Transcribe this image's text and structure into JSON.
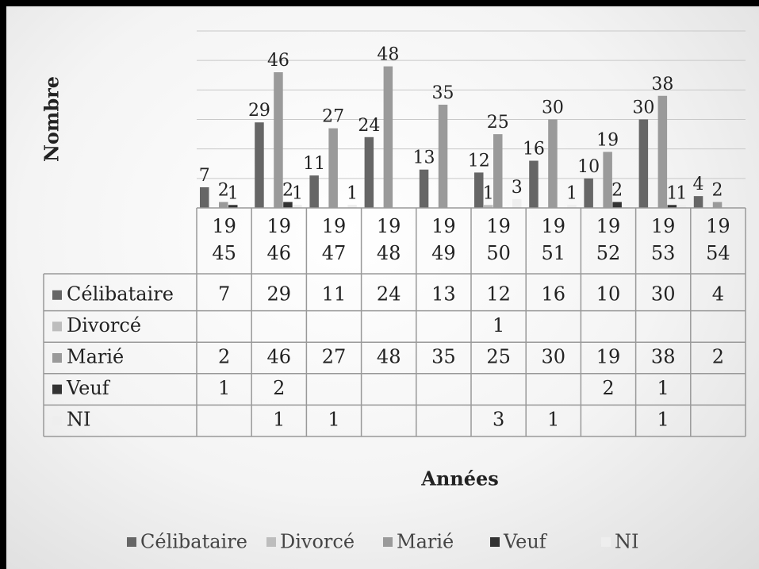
{
  "chart_data": {
    "type": "bar",
    "x_axis_label": "Années",
    "y_axis_label": "Nombre",
    "categories": [
      "1945",
      "1946",
      "1947",
      "1948",
      "1949",
      "1950",
      "1951",
      "1952",
      "1953",
      "1954"
    ],
    "series": [
      {
        "name": "Célibataire",
        "color": "#666666",
        "values": [
          7,
          29,
          11,
          24,
          13,
          12,
          16,
          10,
          30,
          4
        ]
      },
      {
        "name": "Divorcé",
        "color": "#bdbdbd",
        "values": [
          null,
          null,
          null,
          null,
          null,
          1,
          null,
          null,
          null,
          null
        ]
      },
      {
        "name": "Marié",
        "color": "#9a9a9a",
        "values": [
          2,
          46,
          27,
          48,
          35,
          25,
          30,
          19,
          38,
          2
        ]
      },
      {
        "name": "Veuf",
        "color": "#333333",
        "values": [
          1,
          2,
          null,
          null,
          null,
          null,
          null,
          2,
          1,
          null
        ]
      },
      {
        "name": "NI",
        "color": "#eeeeee",
        "values": [
          null,
          1,
          1,
          null,
          null,
          3,
          1,
          null,
          1,
          null
        ]
      }
    ],
    "ylim": [
      0,
      60
    ],
    "yticks": [
      0,
      10,
      20,
      30,
      40,
      50,
      60
    ],
    "grid": true,
    "data_table": true,
    "legend": "bottom"
  }
}
